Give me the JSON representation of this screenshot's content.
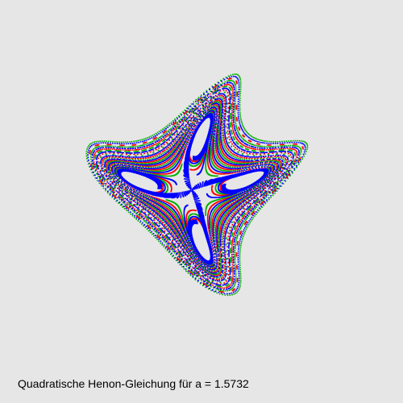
{
  "caption": "Quadratische Henon-Gleichung für a = 1.5732",
  "parameter_a": 1.5732,
  "colors": {
    "background": "#e6e6e6",
    "orbits_inner": "#0000ff",
    "orbits_green": "#00b000",
    "orbits_red": "#ff0000",
    "text": "#000000"
  }
}
